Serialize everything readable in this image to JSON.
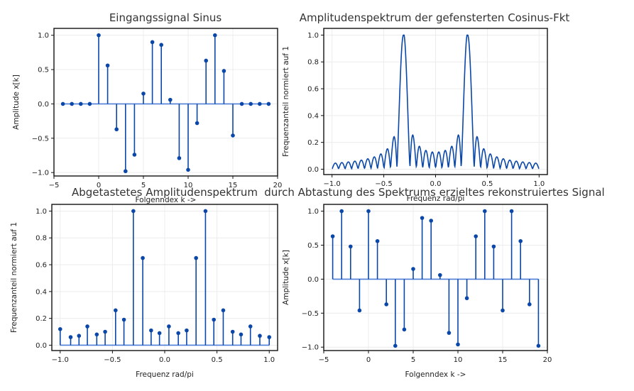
{
  "chart_data": [
    {
      "type": "stem",
      "title": "Eingangssignal Sinus",
      "xlabel": "Folgenndex k ->",
      "ylabel": "Amplitude x[k]",
      "xlim": [
        -5,
        20
      ],
      "ylim": [
        -1.05,
        1.1
      ],
      "xticks": [
        -5,
        0,
        5,
        10,
        15,
        20
      ],
      "yticks": [
        -1.0,
        -0.5,
        0.0,
        0.5,
        1.0
      ],
      "grid": true,
      "x": [
        -4,
        -3,
        -2,
        -1,
        0,
        1,
        2,
        3,
        4,
        5,
        6,
        7,
        8,
        9,
        10,
        11,
        12,
        13,
        14,
        15,
        16,
        17,
        18,
        19
      ],
      "values": [
        0,
        0,
        0,
        0,
        1.0,
        0.56,
        -0.37,
        -0.98,
        -0.74,
        0.15,
        0.9,
        0.86,
        0.06,
        -0.79,
        -0.96,
        -0.28,
        0.63,
        1.0,
        0.48,
        -0.46,
        0,
        0,
        0,
        0
      ]
    },
    {
      "type": "line",
      "title": "Amplitudenspektrum der gefensterten Cosinus-Fkt",
      "xlabel": "Frequenz rad/pi",
      "ylabel": "Frequenzanteil normiert auf 1",
      "xlim": [
        -1.08,
        1.08
      ],
      "ylim": [
        -0.04,
        1.05
      ],
      "xticks": [
        -1.0,
        -0.5,
        0.0,
        0.5,
        1.0
      ],
      "yticks": [
        0.0,
        0.2,
        0.4,
        0.6,
        0.8,
        1.0
      ],
      "grid": true,
      "main_lobe_center": 0.31,
      "side_lobe_spacing": 0.0625
    },
    {
      "type": "stem",
      "title": "Abgetastetes Amplitudenspektrum",
      "xlabel": "Frequenz rad/pi",
      "ylabel": "Frequenzanteil normiert auf 1",
      "xlim": [
        -1.08,
        1.08
      ],
      "ylim": [
        -0.04,
        1.05
      ],
      "xticks": [
        -1.0,
        -0.5,
        0.0,
        0.5,
        1.0
      ],
      "yticks": [
        0.0,
        0.2,
        0.4,
        0.6,
        0.8,
        1.0
      ],
      "grid": true,
      "x": [
        -1.0,
        -0.9,
        -0.82,
        -0.74,
        -0.65,
        -0.57,
        -0.47,
        -0.39,
        -0.3,
        -0.21,
        -0.13,
        -0.05,
        0.04,
        0.13,
        0.21,
        0.3,
        0.39,
        0.47,
        0.56,
        0.65,
        0.73,
        0.82,
        0.91,
        1.0
      ],
      "values": [
        0.12,
        0.06,
        0.07,
        0.14,
        0.08,
        0.1,
        0.26,
        0.19,
        1.0,
        0.65,
        0.11,
        0.09,
        0.14,
        0.09,
        0.11,
        0.65,
        1.0,
        0.19,
        0.26,
        0.1,
        0.08,
        0.14,
        0.07,
        0.06
      ]
    },
    {
      "type": "stem",
      "title": "durch Abtastung des Spektrums erzieltes rekonstruiertes Signal",
      "xlabel": "Folgenndex k ->",
      "ylabel": "Amplitude x[k]",
      "xlim": [
        -5,
        20
      ],
      "ylim": [
        -1.05,
        1.1
      ],
      "xticks": [
        -5,
        0,
        5,
        10,
        15,
        20
      ],
      "yticks": [
        -1.0,
        -0.5,
        0.0,
        0.5,
        1.0
      ],
      "grid": true,
      "x": [
        -4,
        -3,
        -2,
        -1,
        0,
        1,
        2,
        3,
        4,
        5,
        6,
        7,
        8,
        9,
        10,
        11,
        12,
        13,
        14,
        15,
        16,
        17,
        18,
        19
      ],
      "values": [
        0.63,
        1.0,
        0.48,
        -0.46,
        1.0,
        0.56,
        -0.37,
        -0.98,
        -0.74,
        0.15,
        0.9,
        0.86,
        0.06,
        -0.79,
        -0.96,
        -0.28,
        0.63,
        1.0,
        0.48,
        -0.46,
        1.0,
        0.56,
        -0.37,
        -0.98
      ]
    }
  ],
  "colors": {
    "stem": "#0a47a8",
    "baseline": "#4f7fd6",
    "grid": "#ececec",
    "axis": "#111111"
  }
}
